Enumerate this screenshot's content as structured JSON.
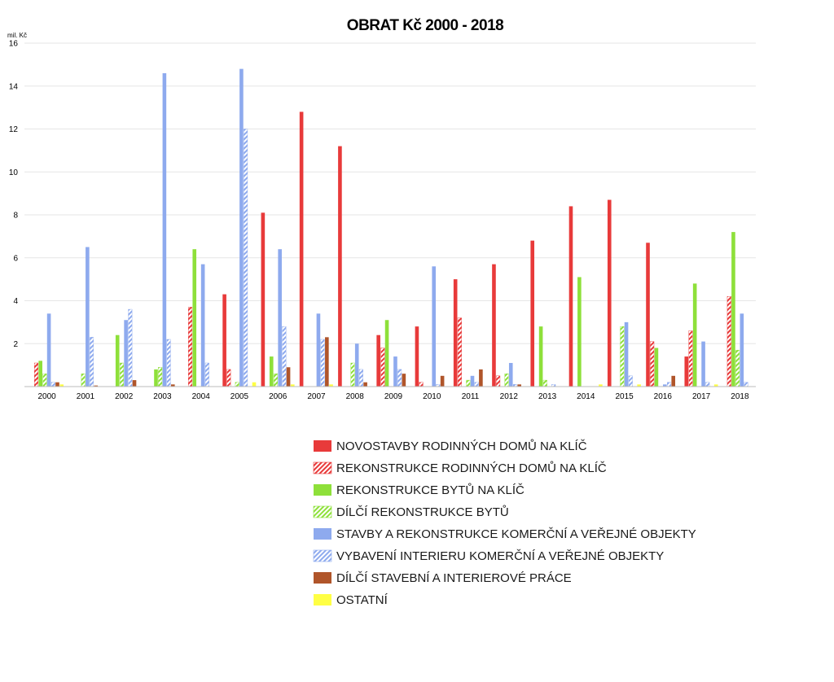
{
  "chart_data": {
    "type": "bar",
    "title": "OBRAT Kč 2000 - 2018",
    "ylabel": "mil. Kč",
    "ylim": [
      0,
      16
    ],
    "yticks": [
      2,
      4,
      6,
      8,
      10,
      12,
      14,
      16
    ],
    "grid": true,
    "legend_position": "bottom",
    "categories": [
      "2000",
      "2001",
      "2002",
      "2003",
      "2004",
      "2005",
      "2006",
      "2007",
      "2008",
      "2009",
      "2010",
      "2011",
      "2012",
      "2013",
      "2014",
      "2015",
      "2016",
      "2017",
      "2018"
    ],
    "series": [
      {
        "name": "NOVOSTAVBY RODINNÝCH DOMŮ NA KLÍČ",
        "color": "#e83a3a",
        "pattern": "solid",
        "values": [
          0,
          0,
          0,
          0,
          0,
          4.3,
          8.1,
          12.8,
          11.2,
          2.4,
          2.8,
          5.0,
          5.7,
          6.8,
          8.4,
          8.7,
          6.7,
          1.4,
          0
        ]
      },
      {
        "name": "REKONSTRUKCE RODINNÝCH DOMŮ NA KLÍČ",
        "color": "#e83a3a",
        "pattern": "hatch",
        "values": [
          1.1,
          0,
          0,
          0,
          3.7,
          0.8,
          0,
          0,
          0,
          1.8,
          0.2,
          3.2,
          0.5,
          0,
          0,
          0,
          2.1,
          2.6,
          4.2
        ]
      },
      {
        "name": "REKONSTRUKCE BYTŮ NA KLÍČ",
        "color": "#8ee03a",
        "pattern": "solid",
        "values": [
          1.2,
          0,
          2.4,
          0.8,
          6.4,
          0,
          1.4,
          0,
          0,
          3.1,
          0,
          0,
          0,
          2.8,
          5.1,
          0,
          1.8,
          4.8,
          7.2
        ]
      },
      {
        "name": "DÍLČÍ REKONSTRUKCE BYTŮ",
        "color": "#8ee03a",
        "pattern": "hatch",
        "values": [
          0.6,
          0.6,
          1.1,
          0.9,
          0,
          0.2,
          0.6,
          0,
          1.1,
          0,
          0,
          0.3,
          0.6,
          0.3,
          0,
          2.8,
          0,
          0,
          1.7
        ]
      },
      {
        "name": "STAVBY A REKONSTRUKCE KOMERČNÍ A VEŘEJNÉ OBJEKTY",
        "color": "#8eaaee",
        "pattern": "solid",
        "values": [
          3.4,
          6.5,
          3.1,
          14.6,
          5.7,
          14.8,
          6.4,
          3.4,
          2.0,
          1.4,
          5.6,
          0.5,
          1.1,
          0,
          0,
          3.0,
          0.1,
          2.1,
          3.4
        ]
      },
      {
        "name": "VYBAVENÍ INTERIERU KOMERČNÍ A VEŘEJNÉ OBJEKTY",
        "color": "#8eaaee",
        "pattern": "hatch",
        "values": [
          0.2,
          2.3,
          3.6,
          2.2,
          1.1,
          12.0,
          2.8,
          2.2,
          0.8,
          0.8,
          0.1,
          0.2,
          0.1,
          0.1,
          0,
          0.5,
          0.2,
          0.2,
          0.2
        ]
      },
      {
        "name": "DÍLČÍ STAVEBNÍ A INTERIEROVÉ PRÁCE",
        "color": "#b0552a",
        "pattern": "solid",
        "values": [
          0.2,
          0.05,
          0.3,
          0.1,
          0,
          0,
          0.9,
          2.3,
          0.2,
          0.6,
          0.5,
          0.8,
          0.1,
          0,
          0,
          0,
          0.5,
          0,
          0
        ]
      },
      {
        "name": "OSTATNÍ",
        "color": "#ffff44",
        "pattern": "solid",
        "values": [
          0.1,
          0,
          0,
          0,
          0,
          0.2,
          0.1,
          0.1,
          0,
          0,
          0,
          0,
          0,
          0,
          0.1,
          0.1,
          0,
          0.1,
          0
        ]
      }
    ]
  }
}
